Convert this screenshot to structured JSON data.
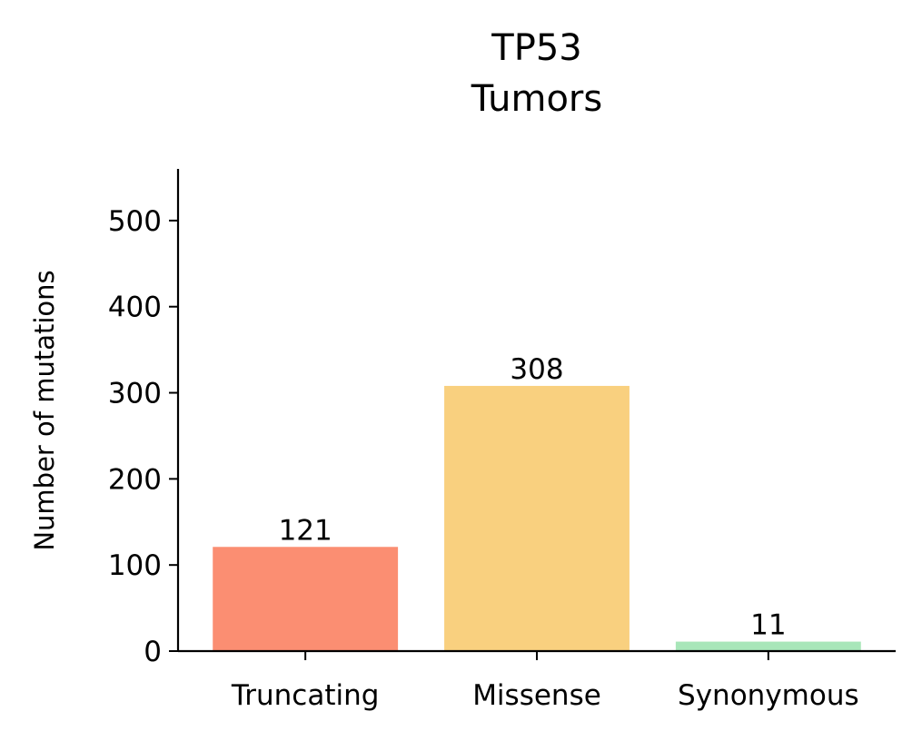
{
  "chart_data": {
    "type": "bar",
    "title_lines": [
      "TP53",
      "Tumors"
    ],
    "xlabel": "",
    "ylabel": "Number of mutations",
    "categories": [
      "Truncating",
      "Missense",
      "Synonymous"
    ],
    "values": [
      121,
      308,
      11
    ],
    "data_labels": [
      "121",
      "308",
      "11"
    ],
    "colors": [
      "#fb8e72",
      "#f9d07f",
      "#a8e6b9"
    ],
    "ylim": [
      0,
      560
    ],
    "yticks": [
      0,
      100,
      200,
      300,
      400,
      500
    ],
    "ytick_labels": [
      "0",
      "100",
      "200",
      "300",
      "400",
      "500"
    ],
    "grid": false,
    "legend": "none"
  }
}
